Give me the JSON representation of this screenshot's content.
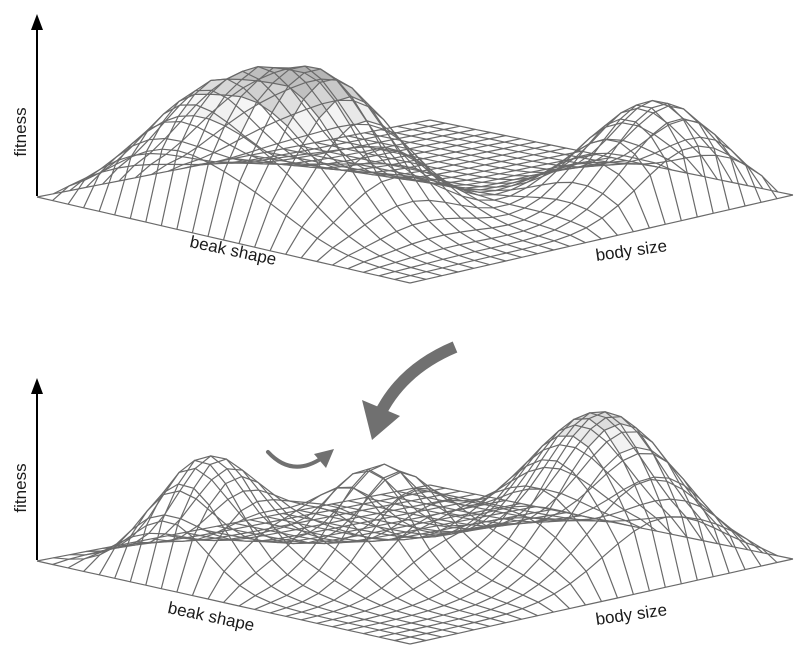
{
  "panels": [
    {
      "id": "top",
      "y_axis_label": "fitness",
      "x_axis_label": "beak shape",
      "z_axis_label": "body size",
      "peaks": [
        {
          "u": 0.28,
          "v": 0.12,
          "height": 0.95,
          "spread": 0.16
        },
        {
          "u": 0.55,
          "v": 0.22,
          "height": 0.8,
          "spread": 0.14
        },
        {
          "u": 0.9,
          "v": 0.8,
          "height": 1.0,
          "spread": 0.14
        }
      ]
    },
    {
      "id": "bottom",
      "y_axis_label": "fitness",
      "x_axis_label": "beak shape",
      "z_axis_label": "body size",
      "peaks": [
        {
          "u": 0.3,
          "v": 0.12,
          "height": 0.85,
          "spread": 0.11
        },
        {
          "u": 0.55,
          "v": 0.35,
          "height": 0.55,
          "spread": 0.11
        },
        {
          "u": 0.82,
          "v": 0.72,
          "height": 1.0,
          "spread": 0.16
        }
      ],
      "arrows": [
        "small-curved-arrow",
        "large-curved-arrow"
      ]
    }
  ],
  "colors": {
    "mesh": "#6a6a6a",
    "axis": "#000000",
    "arrow": "#707070",
    "shade_top": "#8a8a8a"
  }
}
